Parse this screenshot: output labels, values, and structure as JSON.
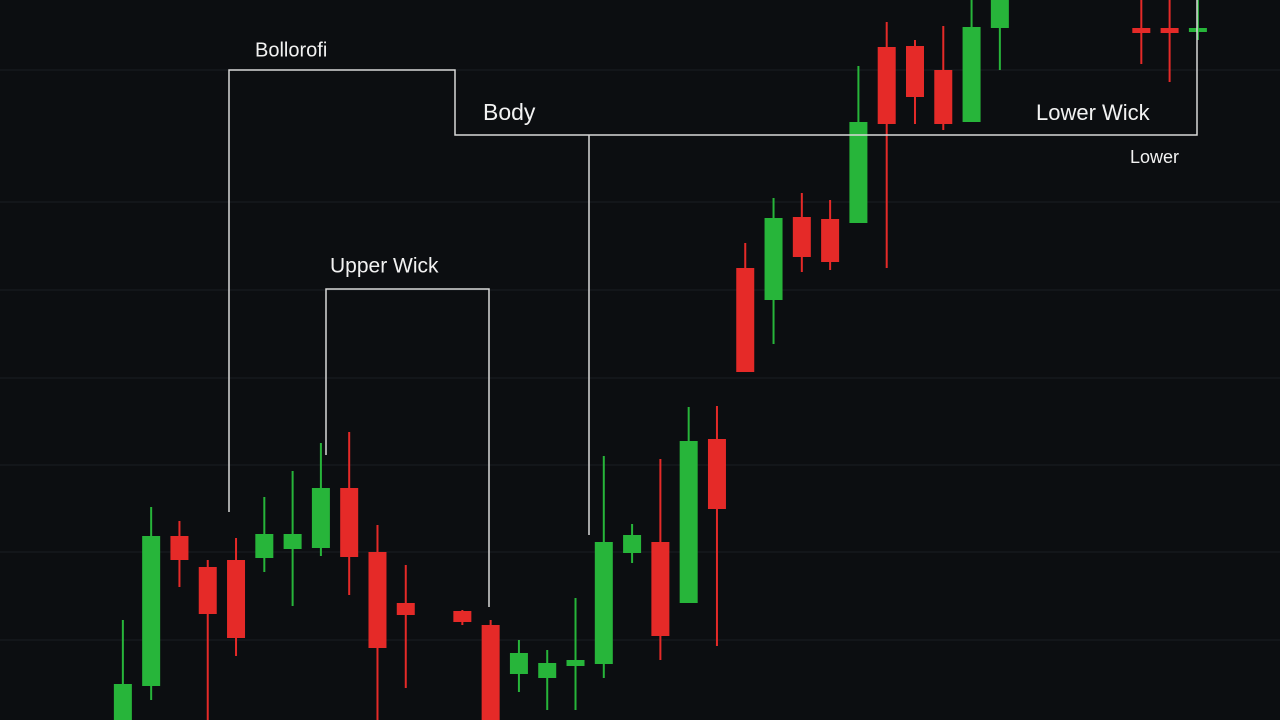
{
  "chart_data": {
    "type": "candlestick",
    "annotations": [
      "Bollorofi",
      "Body",
      "Lower Wick",
      "Lower",
      "Upper Wick"
    ],
    "open": [
      null,
      null,
      null,
      0,
      34,
      184,
      153,
      160,
      162,
      171,
      172,
      232,
      168,
      117,
      null,
      109,
      95,
      46,
      42,
      54,
      56,
      167,
      178,
      117,
      281,
      452,
      420,
      503,
      501,
      497,
      673,
      674,
      650,
      598,
      692,
      null,
      null,
      null,
      null,
      692,
      692,
      688
    ],
    "high": [
      null,
      null,
      null,
      100,
      213,
      199,
      160,
      182,
      223,
      249,
      277,
      288,
      195,
      155,
      null,
      110,
      100,
      80,
      70,
      122,
      264,
      196,
      261,
      313,
      314,
      477,
      522,
      527,
      520,
      654,
      698,
      680,
      694,
      720,
      720,
      null,
      null,
      null,
      null,
      720,
      720,
      720
    ],
    "low": [
      null,
      null,
      null,
      0,
      20,
      133,
      0,
      64,
      148,
      114,
      164,
      125,
      0,
      32,
      null,
      95,
      0,
      28,
      10,
      10,
      42,
      157,
      60,
      117,
      74,
      348,
      376,
      448,
      450,
      497,
      452,
      596,
      590,
      598,
      650,
      null,
      null,
      null,
      null,
      656,
      638,
      680
    ],
    "close": [
      null,
      null,
      null,
      36,
      184,
      160,
      106,
      82,
      186,
      186,
      232,
      163,
      72,
      105,
      null,
      98,
      0,
      67,
      57,
      60,
      178,
      185,
      84,
      279,
      211,
      348,
      502,
      463,
      458,
      598,
      596,
      623,
      596,
      693,
      720,
      null,
      null,
      null,
      null,
      687,
      687,
      692
    ],
    "up_color": "#27b53a",
    "down_color": "#e52a28",
    "ylim": [
      0,
      720
    ]
  }
}
